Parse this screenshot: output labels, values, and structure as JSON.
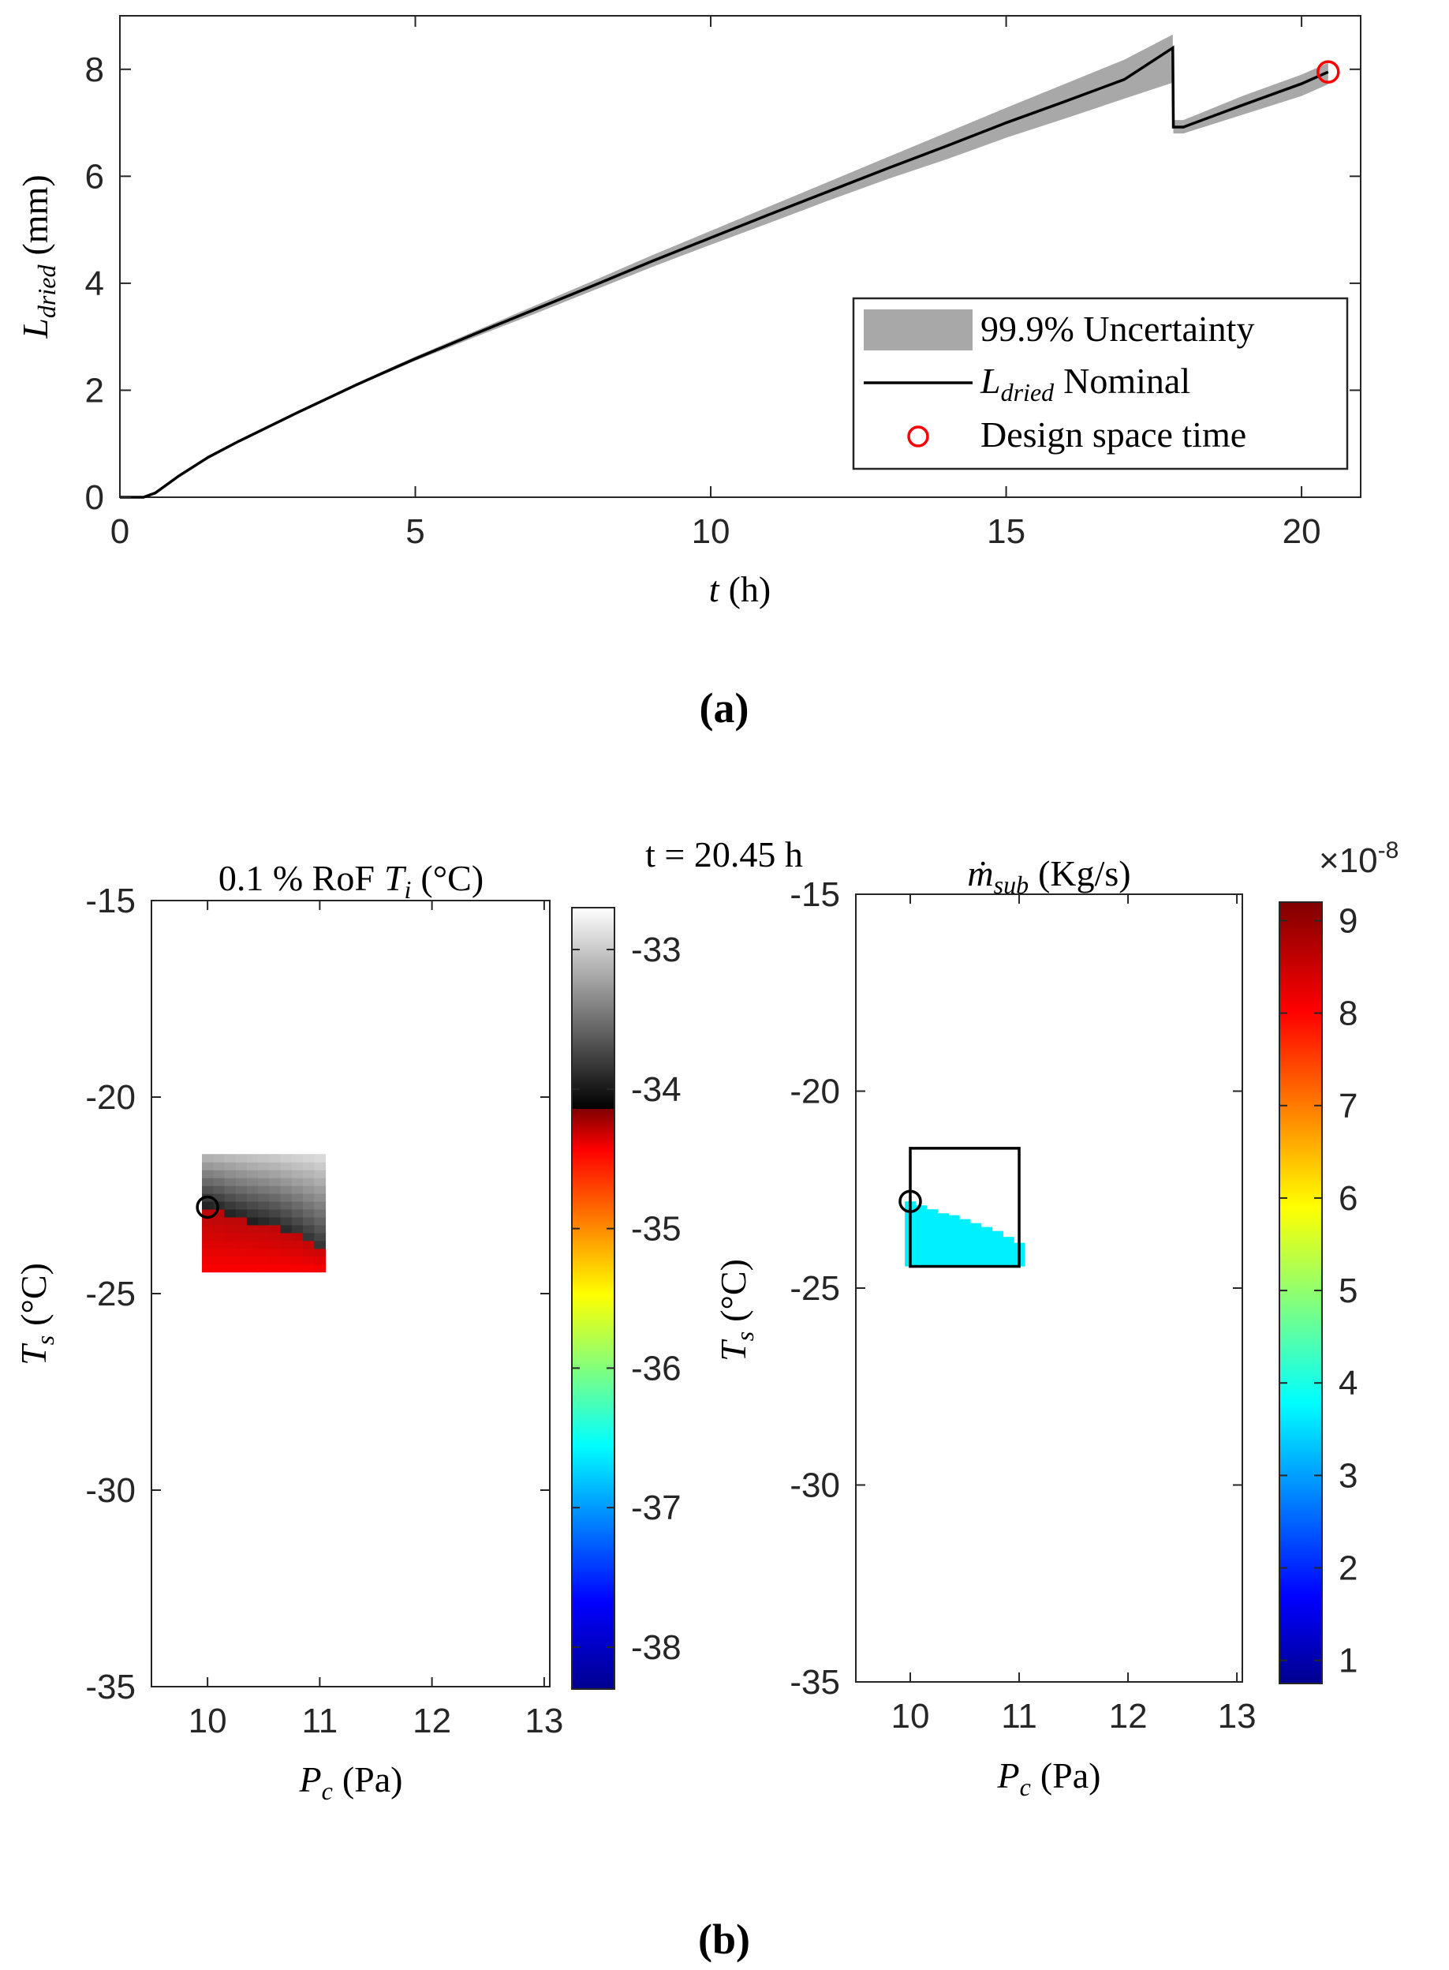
{
  "panel_a_label": "(a)",
  "panel_b_label": "(b)",
  "time_label": "t = 20.45 h",
  "chart_data": [
    {
      "type": "line",
      "id": "a",
      "xlabel_var": "t",
      "xlabel_unit": "(h)",
      "ylabel_var": "L",
      "ylabel_sub": "dried",
      "ylabel_unit": "(mm)",
      "xlim": [
        0,
        21
      ],
      "ylim": [
        0,
        9
      ],
      "xticks": [
        0,
        5,
        10,
        15,
        20
      ],
      "yticks": [
        0,
        2,
        4,
        6,
        8
      ],
      "xtick_labels": [
        "0",
        "5",
        "10",
        "15",
        "20"
      ],
      "ytick_labels": [
        "0",
        "2",
        "4",
        "6",
        "8"
      ],
      "series": [
        {
          "name": "99.9% Uncertainty",
          "kind": "band",
          "color": "#a8a8a8",
          "x": [
            0,
            0.4,
            0.6,
            1,
            1.5,
            2,
            3,
            4,
            5,
            6,
            7,
            8,
            9,
            10,
            11,
            12,
            13,
            14,
            15,
            16,
            17,
            17.82,
            17.83,
            18,
            19,
            20,
            20.45
          ],
          "lower": [
            0,
            0,
            0.08,
            0.4,
            0.75,
            1.03,
            1.56,
            2.08,
            2.55,
            2.99,
            3.42,
            3.86,
            4.3,
            4.72,
            5.13,
            5.55,
            5.95,
            6.32,
            6.72,
            7.08,
            7.45,
            7.75,
            6.8,
            6.8,
            7.15,
            7.5,
            7.72
          ],
          "upper": [
            0,
            0,
            0.08,
            0.4,
            0.75,
            1.05,
            1.6,
            2.13,
            2.63,
            3.1,
            3.57,
            4.04,
            4.52,
            4.98,
            5.44,
            5.9,
            6.36,
            6.82,
            7.28,
            7.73,
            8.18,
            8.65,
            7.05,
            7.05,
            7.5,
            7.9,
            8.12
          ]
        },
        {
          "name": "Nominal",
          "legend_var": "L",
          "legend_sub": "dried",
          "kind": "line",
          "color": "#000000",
          "x": [
            0,
            0.4,
            0.6,
            1,
            1.5,
            2,
            3,
            4,
            5,
            6,
            7,
            8,
            9,
            10,
            11,
            12,
            13,
            14,
            15,
            16,
            17,
            17.82,
            17.83,
            18,
            19,
            20,
            20.45
          ],
          "y": [
            0,
            0,
            0.08,
            0.4,
            0.75,
            1.04,
            1.58,
            2.1,
            2.59,
            3.05,
            3.5,
            3.95,
            4.41,
            4.85,
            5.29,
            5.72,
            6.15,
            6.57,
            7.0,
            7.4,
            7.81,
            8.4,
            6.92,
            6.92,
            7.33,
            7.73,
            7.95
          ]
        },
        {
          "name": "Design space time",
          "kind": "marker",
          "color": "#ff0000",
          "x": [
            20.45
          ],
          "y": [
            7.95
          ]
        }
      ],
      "legend": [
        "99.9% Uncertainty",
        "Nominal",
        "Design space time"
      ],
      "legend_position": "bottom-right"
    },
    {
      "type": "heatmap",
      "id": "b-left",
      "title": "0.1 % RoF T_i (°C)",
      "title_prefix": "0.1 % RoF",
      "title_var": "T",
      "title_sub": "i",
      "title_unit": "(°C)",
      "xlabel_var": "P",
      "xlabel_sub": "c",
      "xlabel_unit": "(Pa)",
      "ylabel_var": "T",
      "ylabel_sub": "s",
      "ylabel_unit": "(°C)",
      "xlim": [
        9.5,
        13.05
      ],
      "ylim": [
        -35,
        -15
      ],
      "xticks": [
        10,
        11,
        12,
        13
      ],
      "yticks": [
        -35,
        -30,
        -25,
        -20,
        -15
      ],
      "xtick_labels": [
        "10",
        "11",
        "12",
        "13"
      ],
      "ytick_labels": [
        "-35",
        "-30",
        "-25",
        "-20",
        "-15"
      ],
      "grid_x": [
        9.95,
        11.05
      ],
      "grid_y": [
        -24.45,
        -21.45
      ],
      "nx": 11,
      "ny": 15,
      "boundary_y": [
        -22.9,
        -22.95,
        -23.05,
        -23.1,
        -23.15,
        -23.2,
        -23.25,
        -23.35,
        -23.45,
        -23.6,
        -23.75
      ],
      "colorbar": {
        "ticks": [
          -33,
          -34,
          -35,
          -36,
          -37,
          -38
        ],
        "tick_labels": [
          "-33",
          "-34",
          "-35",
          "-36",
          "-37",
          "-38"
        ],
        "range": [
          -38.3,
          -32.7
        ],
        "break_value": -34.2
      },
      "marker": {
        "x": 10,
        "y": -22.8,
        "color": "#000000"
      }
    },
    {
      "type": "heatmap",
      "id": "b-right",
      "title": "ṁ_sub (Kg/s)",
      "title_var": "ṁ",
      "title_sub": "sub",
      "title_unit": "(Kg/s)",
      "xlabel_var": "P",
      "xlabel_sub": "c",
      "xlabel_unit": "(Pa)",
      "ylabel_var": "T",
      "ylabel_sub": "s",
      "ylabel_unit": "(°C)",
      "xlim": [
        9.5,
        13.05
      ],
      "ylim": [
        -35,
        -15
      ],
      "xticks": [
        10,
        11,
        12,
        13
      ],
      "yticks": [
        -35,
        -30,
        -25,
        -20,
        -15
      ],
      "xtick_labels": [
        "10",
        "11",
        "12",
        "13"
      ],
      "ytick_labels": [
        "-35",
        "-30",
        "-25",
        "-20",
        "-15"
      ],
      "grid_x": [
        9.95,
        11.05
      ],
      "grid_y": [
        -24.45,
        -21.45
      ],
      "nx": 11,
      "ny": 15,
      "fill_color": "#00f0ff",
      "boundary_y": [
        -22.8,
        -22.9,
        -23.0,
        -23.1,
        -23.15,
        -23.25,
        -23.35,
        -23.45,
        -23.55,
        -23.7,
        -23.85
      ],
      "box": {
        "x": [
          10,
          11
        ],
        "y": [
          -24.45,
          -21.45
        ]
      },
      "colorbar": {
        "ticks": [
          1,
          2,
          3,
          4,
          5,
          6,
          7,
          8,
          9
        ],
        "tick_labels": [
          "1",
          "2",
          "3",
          "4",
          "5",
          "6",
          "7",
          "8",
          "9"
        ],
        "range": [
          0.75,
          9.2
        ],
        "exponent": "×10",
        "exponent_power": "-8"
      },
      "marker": {
        "x": 10,
        "y": -22.8,
        "color": "#000000"
      }
    }
  ]
}
